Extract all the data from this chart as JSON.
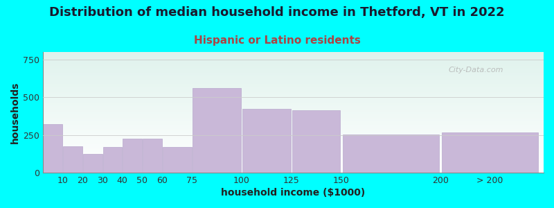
{
  "title": "Distribution of median household income in Thetford, VT in 2022",
  "subtitle": "Hispanic or Latino residents",
  "xlabel": "household income ($1000)",
  "ylabel": "households",
  "background_color": "#00FFFF",
  "plot_bg_gradient_top": "#dff2ec",
  "plot_bg_gradient_bottom": "#ffffff",
  "bar_color": "#c9b8d8",
  "bar_edge_color": "#b8a8cc",
  "title_color": "#1a1a2e",
  "subtitle_color": "#aa4444",
  "label_color": "#222222",
  "categories": [
    "10",
    "20",
    "30",
    "40",
    "50",
    "60",
    "75",
    "100",
    "125",
    "150",
    "200",
    "> 200"
  ],
  "values": [
    320,
    175,
    125,
    170,
    225,
    225,
    170,
    560,
    425,
    415,
    255,
    265
  ],
  "ylim": [
    0,
    800
  ],
  "yticks": [
    0,
    250,
    500,
    750
  ],
  "title_fontsize": 13,
  "subtitle_fontsize": 11,
  "label_fontsize": 10,
  "tick_fontsize": 9,
  "watermark_text": "City-Data.com",
  "left_edges": [
    0,
    10,
    20,
    30,
    40,
    50,
    60,
    75,
    100,
    125,
    150,
    200
  ],
  "bracket_widths": [
    10,
    10,
    10,
    10,
    10,
    10,
    15,
    25,
    25,
    25,
    50,
    50
  ],
  "tick_positions": [
    10,
    20,
    30,
    40,
    50,
    60,
    75,
    100,
    125,
    150,
    200,
    225
  ],
  "tick_labels": [
    "10",
    "20",
    "30",
    "40",
    "50",
    "60",
    "75",
    "100",
    "125",
    "150",
    "200",
    "> 200"
  ],
  "xlim": [
    0,
    252
  ]
}
